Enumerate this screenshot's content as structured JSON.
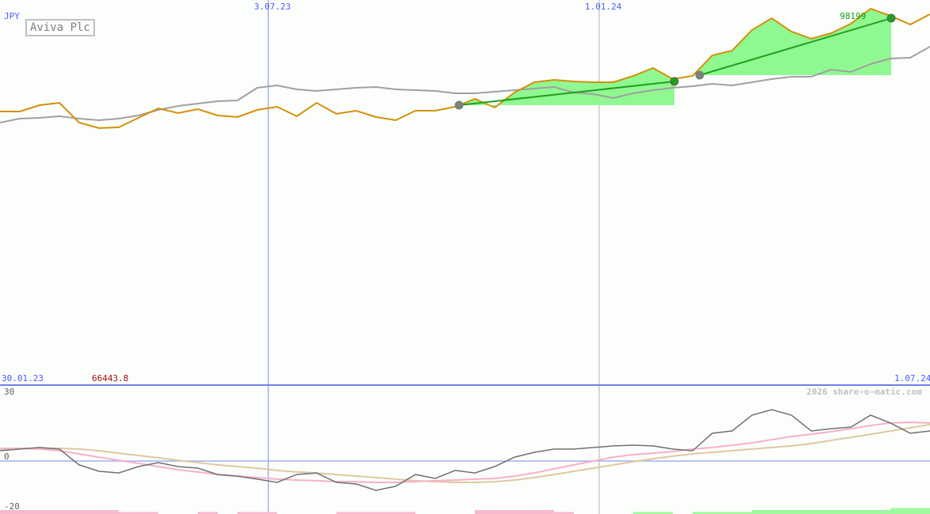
{
  "currency": "JPY",
  "title": "Aviva Plc",
  "watermark": "2026 share-o-matic.com",
  "colors": {
    "price": "#d4900a",
    "compare": "#a0a0a0",
    "trade_fill": "#90f890",
    "trade_line": "#20a020",
    "grid": "#a0b0f0",
    "indicator": "#707070",
    "ma_fast": "#f8b0c8",
    "ma_slow": "#e0c8a0",
    "hist_pos": "#a0f8a0",
    "hist_neg": "#f8b8cc",
    "label_max": "#10a010",
    "label_min": "#a01010"
  },
  "chart_data": [
    {
      "type": "line",
      "x_start": "30.01.23",
      "x_end": "1.07.24",
      "x_ticks": [
        "3.07.23",
        "1.01.24"
      ],
      "max_label": "98199",
      "min_label": "66443.8",
      "ylim": [
        66443.8,
        98199
      ],
      "series": [
        {
          "values": [
            71009,
            71009,
            72669,
            73292,
            68104,
            66652,
            66859,
            69349,
            71839,
            70594,
            71632,
            69972,
            69557,
            71424,
            72254,
            69764,
            73292,
            70387,
            71217,
            69557,
            68727,
            71217,
            71217,
            72254,
            74329,
            72047,
            75989,
            78687,
            79309,
            78894,
            78687,
            78687,
            80347,
            82422,
            79517,
            80347,
            85742,
            86987,
            92382,
            95494,
            91967,
            90099,
            91552,
            94042,
            97984,
            96117,
            93834,
            96532
          ]
        },
        {
          "values": [
            68104,
            69142,
            69349,
            69764,
            69142,
            68727,
            69142,
            69972,
            71424,
            72462,
            73084,
            73707,
            73914,
            77234,
            77857,
            76819,
            76404,
            76819,
            77234,
            77442,
            76819,
            76612,
            76404,
            75782,
            75782,
            76197,
            76612,
            77027,
            77442,
            75989,
            75574,
            74537,
            75782,
            76612,
            77234,
            77649,
            78272,
            77857,
            78687,
            79517,
            80139,
            80139,
            82007,
            81384,
            83459,
            84912,
            85119,
            88024
          ]
        }
      ],
      "trades": [
        {
          "start_index": 23.2,
          "start_value": 72669,
          "end_index": 34.08,
          "end_value": 78894
        },
        {
          "start_index": 35.36,
          "start_value": 80554,
          "end_index": 45.04,
          "end_value": 95494
        }
      ]
    },
    {
      "type": "line",
      "y_ticks": [
        "30",
        "0",
        "-20"
      ],
      "ylim": [
        -21,
        30
      ],
      "series": [
        {
          "values": [
            4.5,
            5.2,
            5.9,
            5.2,
            -1.7,
            -4.5,
            -5.2,
            -2.4,
            -0.7,
            -2.4,
            -3.1,
            -5.9,
            -6.6,
            -7.9,
            -9.3,
            -5.9,
            -5.2,
            -9.3,
            -10,
            -12.8,
            -11,
            -5.9,
            -7.6,
            -4.1,
            -5.2,
            -2.4,
            1.7,
            3.8,
            5.2,
            5.2,
            5.9,
            6.6,
            6.9,
            6.6,
            5.2,
            4.5,
            12.1,
            13.1,
            20,
            22.4,
            20,
            13.1,
            14.1,
            14.8,
            20,
            16.6,
            12.1,
            13.1
          ]
        },
        {
          "values": [
            5.5,
            5.5,
            5.2,
            4.5,
            3.1,
            1.7,
            0.3,
            -1,
            -2.4,
            -3.8,
            -4.8,
            -5.9,
            -6.6,
            -7.2,
            -7.9,
            -8.3,
            -8.6,
            -9,
            -9,
            -9.3,
            -9.3,
            -9,
            -8.6,
            -8.3,
            -7.9,
            -7.6,
            -6.6,
            -5.2,
            -3.4,
            -1.7,
            0,
            1.7,
            2.8,
            3.4,
            4.1,
            5.2,
            5.9,
            6.9,
            7.9,
            9.3,
            10.7,
            11.7,
            12.8,
            14.1,
            15.5,
            16.6,
            16.9,
            16.6
          ]
        },
        {
          "values": [
            5.2,
            5.5,
            5.5,
            5.5,
            5.2,
            4.5,
            3.4,
            2.4,
            1.4,
            0.3,
            -0.7,
            -1.7,
            -2.4,
            -3.1,
            -4.1,
            -4.8,
            -5.2,
            -5.9,
            -6.6,
            -7.2,
            -7.9,
            -8.6,
            -9,
            -9.3,
            -9.3,
            -9,
            -8.3,
            -7.2,
            -5.9,
            -4.5,
            -3.1,
            -1.7,
            -0.3,
            1,
            2.1,
            3.1,
            3.8,
            4.5,
            5.2,
            5.9,
            6.6,
            7.6,
            9,
            10.3,
            11.7,
            13.1,
            14.5,
            15.9
          ]
        }
      ],
      "histogram": [
        -2,
        -2,
        -2,
        -2,
        -2,
        -2,
        -1,
        -1,
        0,
        0,
        -1,
        0,
        -1,
        -1,
        0,
        0,
        0,
        -1,
        -1,
        -1,
        -1,
        0,
        0,
        0,
        -2,
        -2,
        -2,
        -2,
        -1,
        0,
        0,
        0,
        1,
        1,
        0,
        1,
        1,
        1,
        2,
        2,
        2,
        2,
        2,
        2,
        2,
        3,
        3,
        3
      ]
    }
  ]
}
